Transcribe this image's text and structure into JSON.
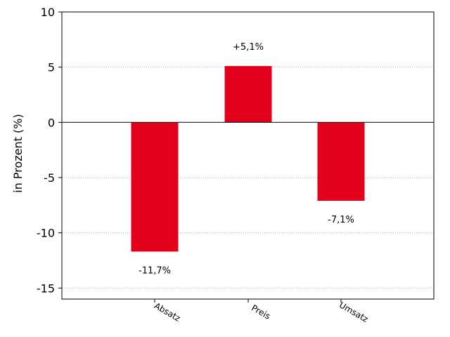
{
  "chart_data": {
    "type": "bar",
    "categories": [
      "Absatz",
      "Preis",
      "Umsatz"
    ],
    "values": [
      -11.7,
      5.1,
      -7.1
    ],
    "data_labels": [
      "-11,7%",
      "+5,1%",
      "-7,1%"
    ],
    "ylabel": "in Prozent (%)",
    "xlabel": "",
    "ylim": [
      -16,
      10
    ],
    "yticks": [
      10,
      5,
      0,
      -5,
      -10,
      -15
    ],
    "ytick_labels": [
      "10",
      "5",
      "0",
      "-5",
      "-10",
      "-15"
    ],
    "grid": "y-dotted",
    "colors": {
      "bar": "#e2001a",
      "grid": "#b0b0b0",
      "axis": "#000000"
    }
  }
}
